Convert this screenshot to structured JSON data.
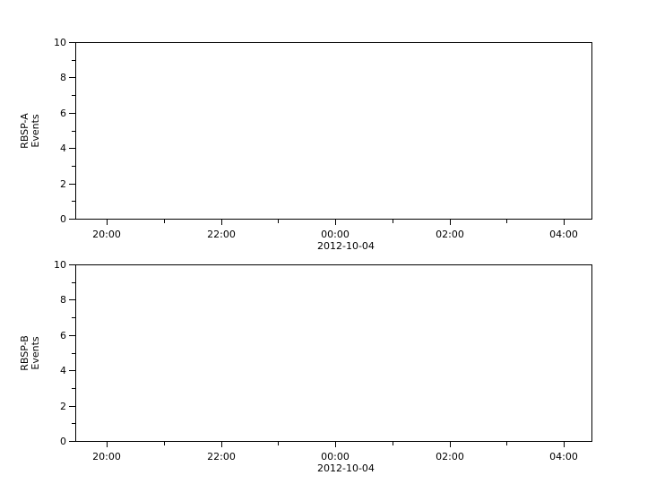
{
  "figure": {
    "background_color": "#ffffff",
    "axis_color": "#000000",
    "text_color": "#000000"
  },
  "chart_data": [
    {
      "type": "line",
      "title": "",
      "xlabel": "",
      "ylabel": "RBSP-A Events",
      "ylabel_lines": [
        "RBSP-A",
        "Events"
      ],
      "ylim": [
        0,
        10
      ],
      "y_major_ticks": [
        0,
        2,
        4,
        6,
        8,
        10
      ],
      "y_minor_ticks": [
        1,
        3,
        5,
        7,
        9
      ],
      "x_major_tick_labels": [
        "20:00",
        "22:00",
        "00:00",
        "02:00",
        "04:00"
      ],
      "x_minor_tick_labels": [
        "21:00",
        "23:00",
        "01:00",
        "03:00"
      ],
      "x_date_label": "2012-10-04",
      "x_date_under_tick": "00:00",
      "x_range_approx": [
        "2012-10-03 19:30",
        "2012-10-04 04:30"
      ],
      "grid": false,
      "legend": null,
      "series": []
    },
    {
      "type": "line",
      "title": "",
      "xlabel": "",
      "ylabel": "RBSP-B Events",
      "ylabel_lines": [
        "RBSP-B",
        "Events"
      ],
      "ylim": [
        0,
        10
      ],
      "y_major_ticks": [
        0,
        2,
        4,
        6,
        8,
        10
      ],
      "y_minor_ticks": [
        1,
        3,
        5,
        7,
        9
      ],
      "x_major_tick_labels": [
        "20:00",
        "22:00",
        "00:00",
        "02:00",
        "04:00"
      ],
      "x_minor_tick_labels": [
        "21:00",
        "23:00",
        "01:00",
        "03:00"
      ],
      "x_date_label": "2012-10-04",
      "x_date_under_tick": "00:00",
      "x_range_approx": [
        "2012-10-03 19:30",
        "2012-10-04 04:30"
      ],
      "grid": false,
      "legend": null,
      "series": []
    }
  ]
}
